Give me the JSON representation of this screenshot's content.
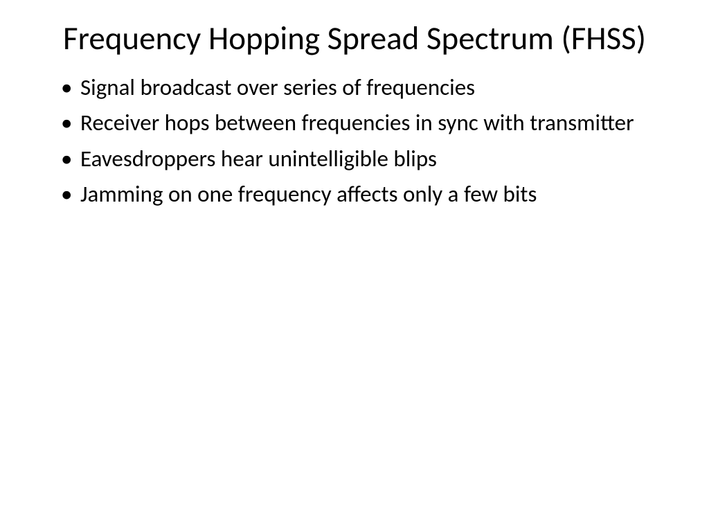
{
  "slide": {
    "title": "Frequency Hopping Spread Spectrum (FHSS)",
    "bullets": [
      "Signal broadcast over series of frequencies",
      "Receiver hops between frequencies in sync with transmitter",
      "Eavesdroppers hear unintelligible blips",
      "Jamming on one frequency affects only a few bits"
    ],
    "styling": {
      "background_color": "#ffffff",
      "text_color": "#000000",
      "title_fontsize": 47,
      "title_fontweight": 400,
      "bullet_fontsize": 33,
      "bullet_fontweight": 400,
      "font_family": "Calibri"
    }
  }
}
